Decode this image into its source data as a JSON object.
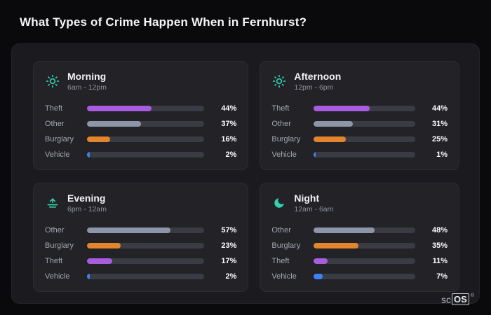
{
  "page_title": "What Types of Crime Happen When in Fernhurst?",
  "logo": {
    "prefix": "sc",
    "boxed": "OS",
    "registered": "®"
  },
  "colors": {
    "theft": "#a85ce0",
    "other": "#8c96a8",
    "burglary": "#e2852d",
    "vehicle": "#3b82f6",
    "icon_accent": "#35d0b0",
    "panel_bg": "#222227",
    "board_bg": "#1a1a1f",
    "page_bg": "#0a0a0d"
  },
  "chart_data": [
    {
      "type": "bar",
      "orientation": "horizontal",
      "title": "Morning",
      "subtitle": "6am - 12pm",
      "icon": "sun-icon",
      "categories": [
        "Theft",
        "Other",
        "Burglary",
        "Vehicle"
      ],
      "values": [
        44,
        37,
        16,
        2
      ],
      "value_labels": [
        "44%",
        "37%",
        "16%",
        "2%"
      ],
      "bar_colors": [
        "#a85ce0",
        "#8c96a8",
        "#e2852d",
        "#3b82f6"
      ],
      "unit": "%",
      "xlim": [
        0,
        80
      ],
      "grid": false,
      "legend": false
    },
    {
      "type": "bar",
      "orientation": "horizontal",
      "title": "Afternoon",
      "subtitle": "12pm - 6pm",
      "icon": "sun-icon",
      "categories": [
        "Theft",
        "Other",
        "Burglary",
        "Vehicle"
      ],
      "values": [
        44,
        31,
        25,
        1
      ],
      "value_labels": [
        "44%",
        "31%",
        "25%",
        "1%"
      ],
      "bar_colors": [
        "#a85ce0",
        "#8c96a8",
        "#e2852d",
        "#3b82f6"
      ],
      "unit": "%",
      "xlim": [
        0,
        80
      ],
      "grid": false,
      "legend": false
    },
    {
      "type": "bar",
      "orientation": "horizontal",
      "title": "Evening",
      "subtitle": "6pm - 12am",
      "icon": "sunset-icon",
      "categories": [
        "Other",
        "Burglary",
        "Theft",
        "Vehicle"
      ],
      "values": [
        57,
        23,
        17,
        2
      ],
      "value_labels": [
        "57%",
        "23%",
        "17%",
        "2%"
      ],
      "bar_colors": [
        "#8c96a8",
        "#e2852d",
        "#a85ce0",
        "#3b82f6"
      ],
      "unit": "%",
      "xlim": [
        0,
        80
      ],
      "grid": false,
      "legend": false
    },
    {
      "type": "bar",
      "orientation": "horizontal",
      "title": "Night",
      "subtitle": "12am - 6am",
      "icon": "moon-icon",
      "categories": [
        "Other",
        "Burglary",
        "Theft",
        "Vehicle"
      ],
      "values": [
        48,
        35,
        11,
        7
      ],
      "value_labels": [
        "48%",
        "35%",
        "11%",
        "7%"
      ],
      "bar_colors": [
        "#8c96a8",
        "#e2852d",
        "#a85ce0",
        "#3b82f6"
      ],
      "unit": "%",
      "xlim": [
        0,
        80
      ],
      "grid": false,
      "legend": false
    }
  ]
}
